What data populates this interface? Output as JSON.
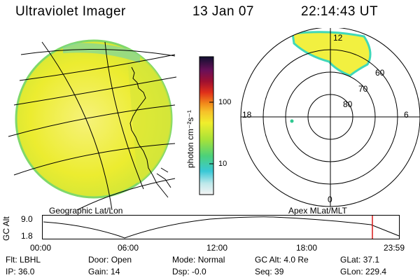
{
  "header": {
    "title": "Ultraviolet Imager",
    "date": "13 Jan 07",
    "time": "22:14:43 UT"
  },
  "colorbar": {
    "unit_label": "photon cm⁻²s⁻¹",
    "ticks": [
      "100",
      "10"
    ]
  },
  "polar_plot": {
    "mlt_labels": {
      "top": "12",
      "left": "18",
      "right": "6",
      "bottom": "0"
    },
    "mlat_labels": [
      "60",
      "70",
      "80"
    ]
  },
  "panel_labels": {
    "geographic": "Geographic Lat/Lon",
    "apex": "Apex MLat/MLT"
  },
  "altitude_plot": {
    "axis_title": "GC Alt",
    "y_ticks": [
      "9.0",
      "1.8"
    ],
    "x_ticks": [
      "00:00",
      "06:00",
      "12:00",
      "18:00",
      "23:59"
    ]
  },
  "status": {
    "row1": [
      {
        "label": "Flt:",
        "value": "LBHL"
      },
      {
        "label": "Door:",
        "value": "Open"
      },
      {
        "label": "Mode:",
        "value": "Normal"
      },
      {
        "label": "GC Alt:",
        "value": "4.0 Re"
      },
      {
        "label": "GLat:",
        "value": "37.1"
      }
    ],
    "row2": [
      {
        "label": "IP:",
        "value": "36.0"
      },
      {
        "label": "Gain:",
        "value": "14"
      },
      {
        "label": "Dsp:",
        "value": "-0.0"
      },
      {
        "label": "Seq:",
        "value": "39"
      },
      {
        "label": "GLon:",
        "value": "229.4"
      }
    ]
  },
  "colors": {
    "disk_fill": "#ecec2a",
    "disk_edge": "#9ee05a",
    "aurora": "#f2f040",
    "aurora_edge": "#3fd8b8",
    "marker": "#d81818"
  }
}
